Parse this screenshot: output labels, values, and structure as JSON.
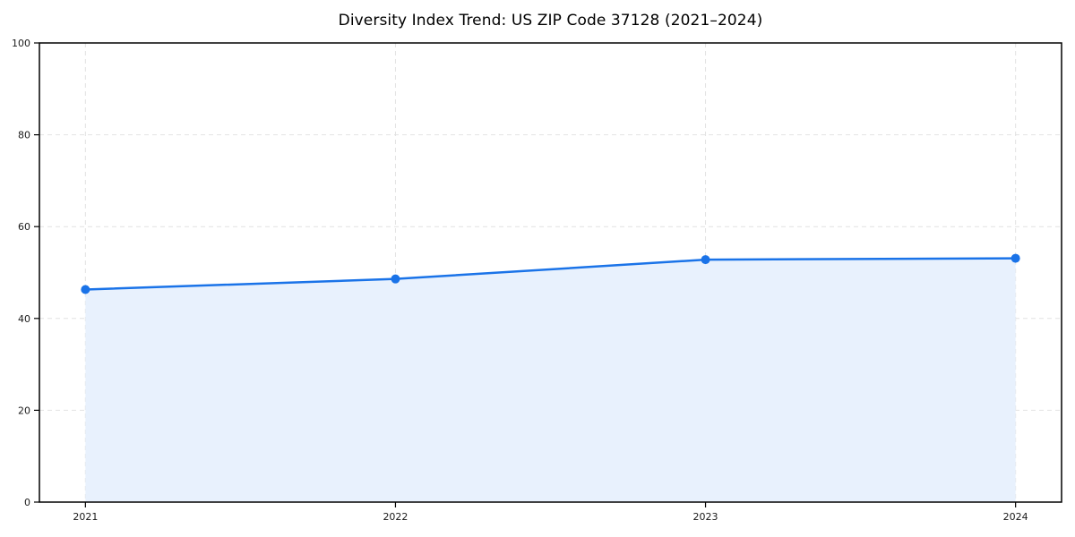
{
  "chart_data": {
    "type": "line",
    "title": "Diversity Index Trend: US ZIP Code 37128 (2021–2024)",
    "x": [
      "2021",
      "2022",
      "2023",
      "2024"
    ],
    "series": [
      {
        "name": "Diversity Index",
        "values": [
          46.3,
          48.6,
          52.8,
          53.1
        ]
      }
    ],
    "xlabel": "",
    "ylabel": "",
    "ylim": [
      0,
      100
    ],
    "yticks": [
      0,
      20,
      40,
      60,
      80,
      100
    ],
    "grid": "dashed gridlines on both axes",
    "legend": "none",
    "area_fill": true,
    "style": {
      "line_color": "#1a73e8",
      "marker_color": "#1a73e8",
      "fill_color": "#e8f1fd",
      "gridline_color": "#e2e2e2",
      "axis_color": "#000000",
      "tick_label_color": "#1a1a1a",
      "background": "#ffffff"
    }
  }
}
